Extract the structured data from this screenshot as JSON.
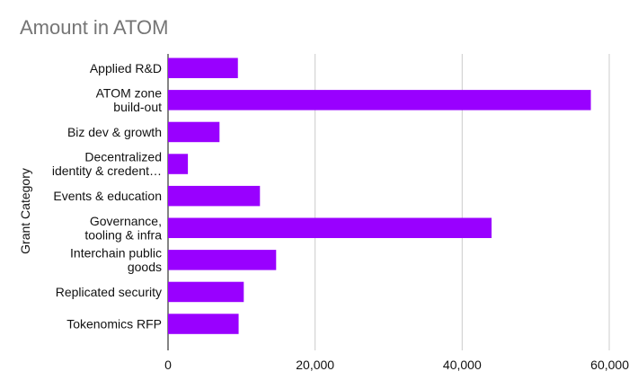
{
  "chart_data": {
    "type": "bar",
    "orientation": "horizontal",
    "title": "Amount in ATOM",
    "ylabel": "Grant Category",
    "xlabel": "",
    "categories": [
      [
        "Applied R&D"
      ],
      [
        "ATOM zone",
        "build-out"
      ],
      [
        "Biz dev & growth"
      ],
      [
        "Decentralized",
        "identity & credent…"
      ],
      [
        "Events & education"
      ],
      [
        "Governance,",
        "tooling & infra"
      ],
      [
        "Interchain public",
        "goods"
      ],
      [
        "Replicated security"
      ],
      [
        "Tokenomics RFP"
      ]
    ],
    "values": [
      9500,
      57500,
      7000,
      2700,
      12500,
      44000,
      14700,
      10300,
      9600
    ],
    "xlim": [
      0,
      60000
    ],
    "xticks": [
      0,
      20000,
      40000,
      60000
    ],
    "xtick_labels": [
      "0",
      "20,000",
      "40,000",
      "60,000"
    ],
    "grid": "vertical",
    "bar_color": "#9900ff",
    "grid_color": "#cccccc",
    "legend": "none"
  }
}
